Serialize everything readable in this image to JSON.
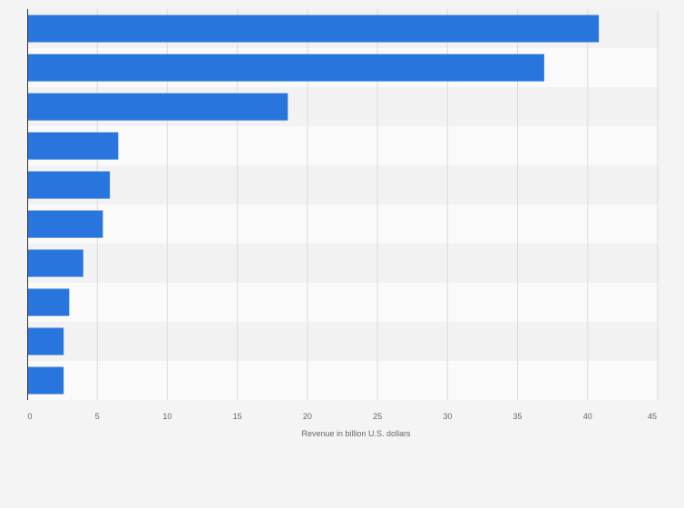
{
  "chart_data": {
    "type": "bar",
    "orientation": "horizontal",
    "categories": [
      "",
      "",
      "",
      "",
      "",
      "",
      "",
      "",
      "",
      ""
    ],
    "values": [
      40.8,
      36.9,
      18.6,
      6.5,
      5.9,
      5.4,
      4.0,
      3.0,
      2.6,
      2.6
    ],
    "xlabel": "Revenue in billion U.S. dollars",
    "ylabel": "",
    "xlim": [
      0,
      45
    ],
    "xticks": [
      0,
      5,
      10,
      15,
      20,
      25,
      30,
      35,
      40,
      45
    ],
    "grid": "vertical",
    "bar_color": "#2876dd",
    "band_colors": [
      "#f2f2f2",
      "#fafafa"
    ],
    "background": "#f4f4f4"
  }
}
